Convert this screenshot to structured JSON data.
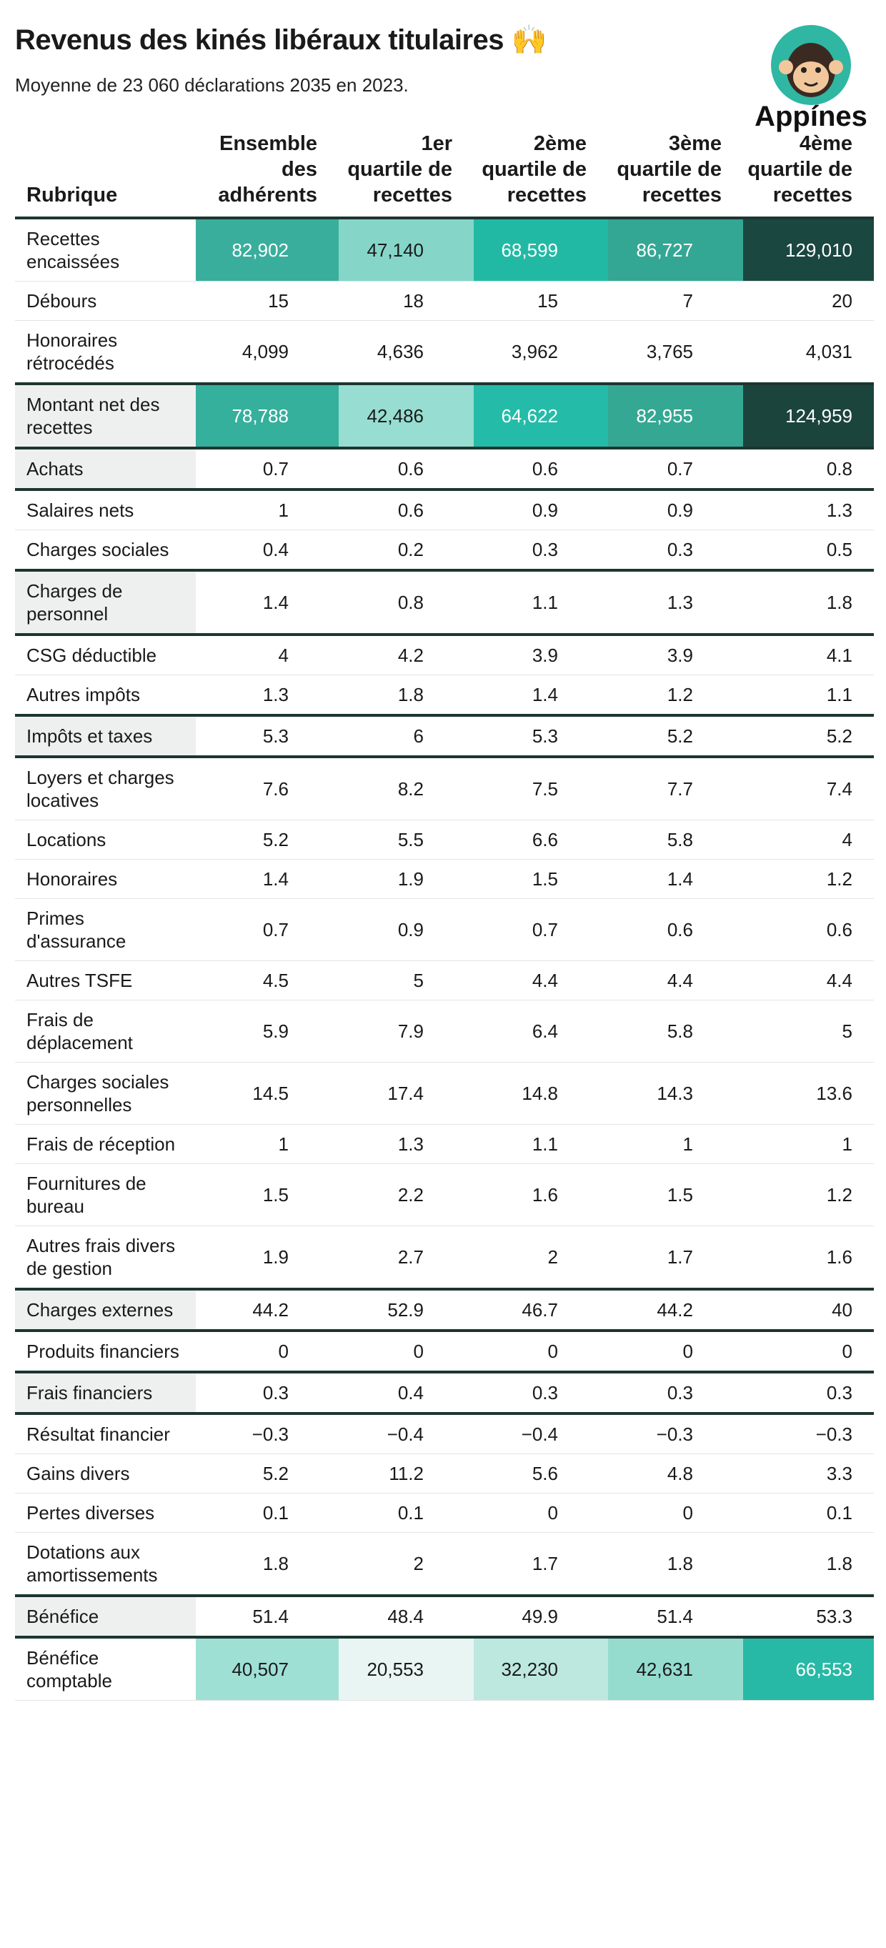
{
  "header": {
    "title": "Revenus des kinés libéraux titulaires 🙌",
    "subtitle": "Moyenne de 23 060 déclarations 2035 en 2023.",
    "logo": "Appínes"
  },
  "table": {
    "columns": [
      "Rubrique",
      "Ensemble des adhérents",
      "1er quartile de recettes",
      "2ème quartile de recettes",
      "3ème quartile de recettes",
      "4ème quartile de recettes"
    ],
    "rows": [
      {
        "label": "Recettes encaissées",
        "values": [
          "82,902",
          "47,140",
          "68,599",
          "86,727",
          "129,010"
        ],
        "fills": [
          "#3aae9c",
          "#85d6c9",
          "#22b9a4",
          "#34a794",
          "#1a4740"
        ]
      },
      {
        "label": "Débours",
        "values": [
          "15",
          "18",
          "15",
          "7",
          "20"
        ]
      },
      {
        "label": "Honoraires rétrocédés",
        "values": [
          "4,099",
          "4,636",
          "3,962",
          "3,765",
          "4,031"
        ]
      },
      {
        "label": "Montant net des recettes",
        "values": [
          "78,788",
          "42,486",
          "64,622",
          "82,955",
          "124,959"
        ],
        "fills": [
          "#35b09d",
          "#97ddd1",
          "#24bca8",
          "#35a894",
          "#1b443d"
        ],
        "total": true
      },
      {
        "label": "Achats",
        "values": [
          "0.7",
          "0.6",
          "0.6",
          "0.7",
          "0.8"
        ],
        "total": true
      },
      {
        "label": "Salaires nets",
        "values": [
          "1",
          "0.6",
          "0.9",
          "0.9",
          "1.3"
        ]
      },
      {
        "label": "Charges sociales",
        "values": [
          "0.4",
          "0.2",
          "0.3",
          "0.3",
          "0.5"
        ]
      },
      {
        "label": "Charges de personnel",
        "values": [
          "1.4",
          "0.8",
          "1.1",
          "1.3",
          "1.8"
        ],
        "total": true
      },
      {
        "label": "CSG déductible",
        "values": [
          "4",
          "4.2",
          "3.9",
          "3.9",
          "4.1"
        ]
      },
      {
        "label": "Autres impôts",
        "values": [
          "1.3",
          "1.8",
          "1.4",
          "1.2",
          "1.1"
        ]
      },
      {
        "label": "Impôts et taxes",
        "values": [
          "5.3",
          "6",
          "5.3",
          "5.2",
          "5.2"
        ],
        "total": true
      },
      {
        "label": "Loyers et charges locatives",
        "values": [
          "7.6",
          "8.2",
          "7.5",
          "7.7",
          "7.4"
        ]
      },
      {
        "label": "Locations",
        "values": [
          "5.2",
          "5.5",
          "6.6",
          "5.8",
          "4"
        ]
      },
      {
        "label": "Honoraires",
        "values": [
          "1.4",
          "1.9",
          "1.5",
          "1.4",
          "1.2"
        ]
      },
      {
        "label": "Primes d'assurance",
        "values": [
          "0.7",
          "0.9",
          "0.7",
          "0.6",
          "0.6"
        ]
      },
      {
        "label": "Autres TSFE",
        "values": [
          "4.5",
          "5",
          "4.4",
          "4.4",
          "4.4"
        ]
      },
      {
        "label": "Frais de déplacement",
        "values": [
          "5.9",
          "7.9",
          "6.4",
          "5.8",
          "5"
        ]
      },
      {
        "label": "Charges sociales personnelles",
        "values": [
          "14.5",
          "17.4",
          "14.8",
          "14.3",
          "13.6"
        ]
      },
      {
        "label": "Frais de réception",
        "values": [
          "1",
          "1.3",
          "1.1",
          "1",
          "1"
        ]
      },
      {
        "label": "Fournitures de bureau",
        "values": [
          "1.5",
          "2.2",
          "1.6",
          "1.5",
          "1.2"
        ]
      },
      {
        "label": "Autres frais divers de gestion",
        "values": [
          "1.9",
          "2.7",
          "2",
          "1.7",
          "1.6"
        ]
      },
      {
        "label": "Charges externes",
        "values": [
          "44.2",
          "52.9",
          "46.7",
          "44.2",
          "40"
        ],
        "total": true
      },
      {
        "label": "Produits financiers",
        "values": [
          "0",
          "0",
          "0",
          "0",
          "0"
        ]
      },
      {
        "label": "Frais financiers",
        "values": [
          "0.3",
          "0.4",
          "0.3",
          "0.3",
          "0.3"
        ],
        "total": true
      },
      {
        "label": "Résultat financier",
        "values": [
          "−0.3",
          "−0.4",
          "−0.4",
          "−0.3",
          "−0.3"
        ]
      },
      {
        "label": "Gains divers",
        "values": [
          "5.2",
          "11.2",
          "5.6",
          "4.8",
          "3.3"
        ]
      },
      {
        "label": "Pertes diverses",
        "values": [
          "0.1",
          "0.1",
          "0",
          "0",
          "0.1"
        ]
      },
      {
        "label": "Dotations aux amortissements",
        "values": [
          "1.8",
          "2",
          "1.7",
          "1.8",
          "1.8"
        ]
      },
      {
        "label": "Bénéfice",
        "values": [
          "51.4",
          "48.4",
          "49.9",
          "51.4",
          "53.3"
        ],
        "total": true
      },
      {
        "label": "Bénéfice comptable",
        "values": [
          "40,507",
          "20,553",
          "32,230",
          "42,631",
          "66,553"
        ],
        "fills": [
          "#9fe0d5",
          "#e8f5f2",
          "#bde8e0",
          "#95dccf",
          "#27b9a5"
        ]
      }
    ]
  }
}
